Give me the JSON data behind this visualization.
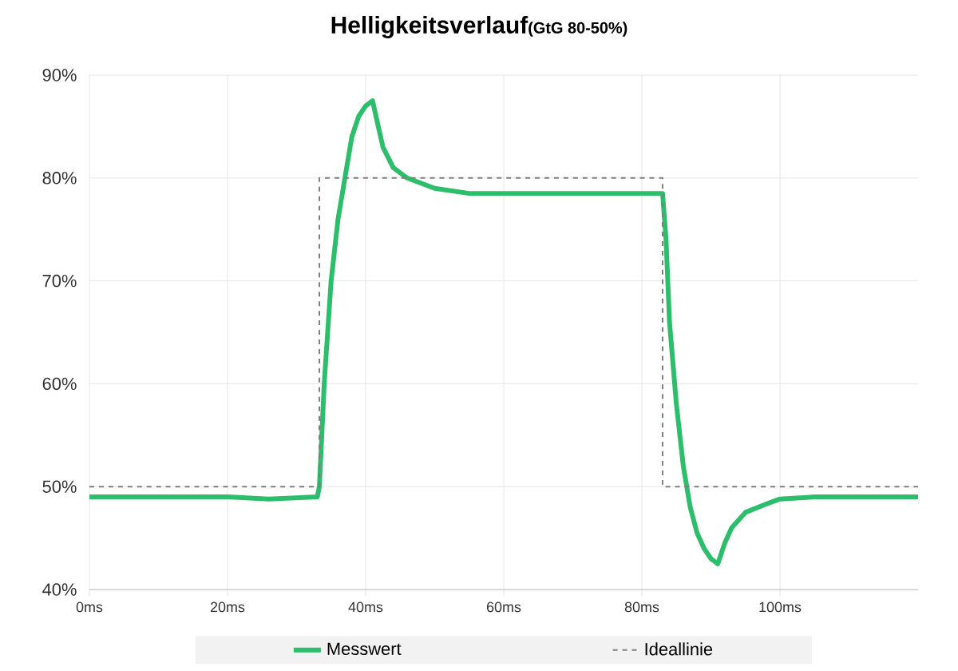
{
  "chart_data": {
    "type": "line",
    "title": "Helligkeitsverlauf",
    "subtitle": "(GtG 80-50%)",
    "xlim": [
      0,
      120
    ],
    "ylim": [
      40,
      90
    ],
    "xticks": [
      {
        "value": 0,
        "label": "0ms"
      },
      {
        "value": 20,
        "label": "20ms"
      },
      {
        "value": 40,
        "label": "40ms"
      },
      {
        "value": 60,
        "label": "60ms"
      },
      {
        "value": 80,
        "label": "80ms"
      },
      {
        "value": 100,
        "label": "100ms"
      }
    ],
    "yticks": [
      {
        "value": 40,
        "label": "40%"
      },
      {
        "value": 50,
        "label": "50%"
      },
      {
        "value": 60,
        "label": "60%"
      },
      {
        "value": 70,
        "label": "70%"
      },
      {
        "value": 80,
        "label": "80%"
      },
      {
        "value": 90,
        "label": "90%"
      }
    ],
    "grid": true,
    "legend": "bottom",
    "series": [
      {
        "name": "Messwert",
        "color": "#2dbe6c",
        "line_style": "solid",
        "x": [
          0,
          10,
          20,
          26,
          33,
          33.3,
          34,
          35,
          36,
          37,
          38,
          39,
          40,
          41,
          41.5,
          42.5,
          44,
          46,
          50,
          55,
          60,
          70,
          80,
          83,
          83.5,
          84,
          85,
          86,
          87,
          88,
          89,
          90,
          91,
          92,
          93,
          95,
          98,
          100,
          105,
          110,
          115,
          120
        ],
        "values": [
          49,
          49,
          49,
          48.8,
          49,
          50,
          60,
          70,
          76,
          80,
          84,
          86,
          87,
          87.5,
          86,
          83,
          81,
          80,
          79,
          78.5,
          78.5,
          78.5,
          78.5,
          78.5,
          74,
          66,
          58,
          52,
          48,
          45.5,
          44,
          43,
          42.5,
          44.5,
          46,
          47.5,
          48.3,
          48.8,
          49,
          49,
          49,
          49
        ]
      },
      {
        "name": "Ideallinie",
        "color": "#7f7f7f",
        "line_style": "dashed",
        "x": [
          0,
          33.3,
          33.3,
          83,
          83,
          120
        ],
        "values": [
          50,
          50,
          80,
          80,
          50,
          50
        ]
      }
    ]
  }
}
